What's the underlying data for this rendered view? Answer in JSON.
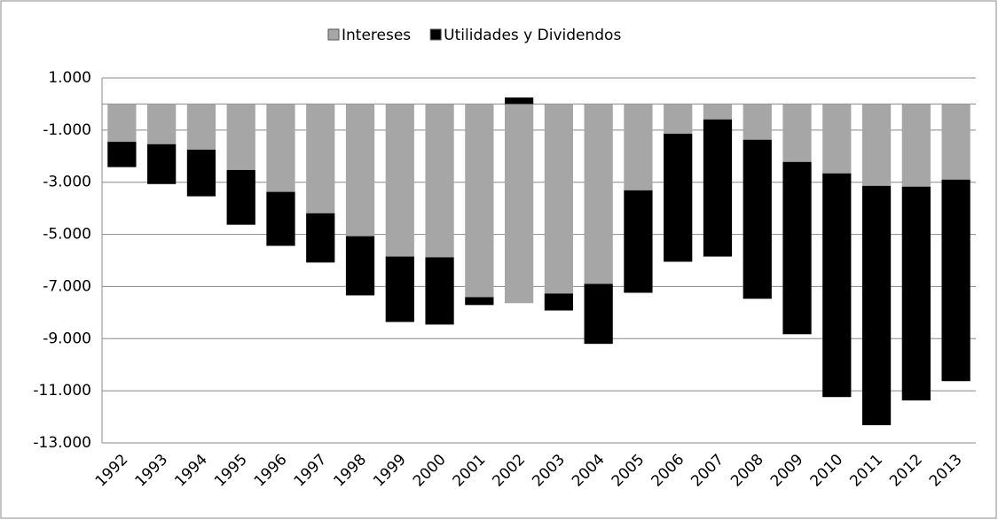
{
  "chart_data": {
    "type": "stacked_bar",
    "categories": [
      "1992",
      "1993",
      "1994",
      "1995",
      "1996",
      "1997",
      "1998",
      "1999",
      "2000",
      "2001",
      "2002",
      "2003",
      "2004",
      "2005",
      "2006",
      "2007",
      "2008",
      "2009",
      "2010",
      "2011",
      "2012",
      "2013"
    ],
    "series": [
      {
        "name": "Intereses",
        "color": "#a6a6a6",
        "values": [
          -1450,
          -1540,
          -1750,
          -2530,
          -3370,
          -4190,
          -5070,
          -5850,
          -5880,
          -7410,
          -7640,
          -7270,
          -6900,
          -3310,
          -1140,
          -590,
          -1370,
          -2220,
          -2660,
          -3140,
          -3170,
          -2900
        ]
      },
      {
        "name": "Utilidades y Dividendos",
        "color": "#000000",
        "values": [
          -970,
          -1530,
          -1790,
          -2100,
          -2070,
          -1890,
          -2270,
          -2510,
          -2580,
          -300,
          250,
          -650,
          -2300,
          -3930,
          -4910,
          -5260,
          -6100,
          -6610,
          -8580,
          -9180,
          -8200,
          -7730
        ]
      }
    ],
    "ylim": [
      -13000,
      1000
    ],
    "yticks": [
      {
        "value": 1000,
        "label": "1.000"
      },
      {
        "value": -1000,
        "label": "-1.000"
      },
      {
        "value": -3000,
        "label": "-3.000"
      },
      {
        "value": -5000,
        "label": "-5.000"
      },
      {
        "value": -7000,
        "label": "-7.000"
      },
      {
        "value": -9000,
        "label": "-9.000"
      },
      {
        "value": -11000,
        "label": "-11.000"
      },
      {
        "value": -13000,
        "label": "-13.000"
      }
    ],
    "grid": true,
    "legend": "top"
  }
}
